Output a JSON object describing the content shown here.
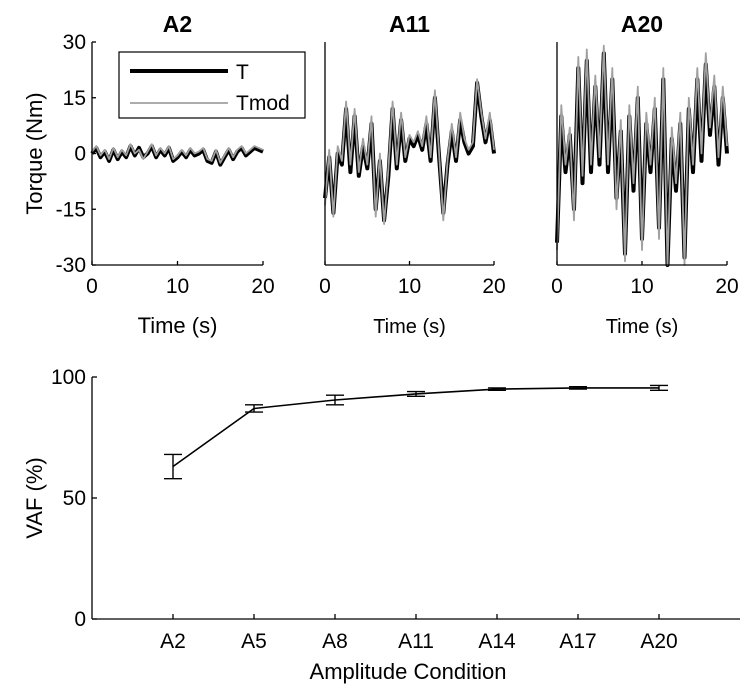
{
  "chart_data": [
    {
      "type": "line",
      "title": "A2",
      "xlabel": "Time (s)",
      "ylabel": "Torque (Nm)",
      "xlim": [
        0,
        20
      ],
      "ylim": [
        -30,
        30
      ],
      "xticks": [
        "0",
        "10",
        "20"
      ],
      "yticks": [
        "-30",
        "-15",
        "0",
        "15",
        "30"
      ],
      "legend": {
        "position": "top-left",
        "entries": [
          "T",
          "Tmod"
        ]
      },
      "series": [
        {
          "name": "T",
          "color": "#000000",
          "x": [
            0,
            0.5,
            1,
            1.5,
            2,
            2.5,
            3,
            3.5,
            4,
            4.5,
            5,
            5.5,
            6,
            6.5,
            7,
            7.5,
            8,
            8.5,
            9,
            9.5,
            10,
            10.5,
            11,
            11.5,
            12,
            12.5,
            13,
            13.5,
            14,
            14.5,
            15,
            15.5,
            16,
            16.5,
            17,
            17.5,
            18,
            18.5,
            19,
            19.5,
            20
          ],
          "y": [
            0,
            1.5,
            -1,
            0.5,
            -2,
            1,
            -1.5,
            0.5,
            -1,
            2,
            -0.5,
            1.5,
            -1,
            0,
            2,
            -1,
            1,
            -0.5,
            1.5,
            -2,
            -1,
            0.5,
            -1,
            1,
            -0.5,
            0,
            1,
            -2,
            -2.5,
            0.5,
            -3,
            -1,
            1,
            -1.5,
            0.5,
            1.5,
            -0.5,
            0.5,
            1.5,
            1,
            0.5
          ]
        },
        {
          "name": "Tmod",
          "color": "#a0a0a0",
          "x": [
            0,
            0.5,
            1,
            1.5,
            2,
            2.5,
            3,
            3.5,
            4,
            4.5,
            5,
            5.5,
            6,
            6.5,
            7,
            7.5,
            8,
            8.5,
            9,
            9.5,
            10,
            10.5,
            11,
            11.5,
            12,
            12.5,
            13,
            13.5,
            14,
            14.5,
            15,
            15.5,
            16,
            16.5,
            17,
            17.5,
            18,
            18.5,
            19,
            19.5,
            20
          ],
          "y": [
            0.5,
            2,
            -0.5,
            1,
            -1.5,
            1.5,
            -1,
            1,
            -0.5,
            2.5,
            0,
            1,
            -1.5,
            0.5,
            2.5,
            -0.5,
            1.5,
            0,
            2,
            -1.5,
            -0.5,
            1,
            -0.5,
            1.5,
            0,
            0.5,
            1.5,
            -1.5,
            -2,
            1,
            -2.5,
            -0.5,
            1.5,
            -1,
            1,
            2,
            0,
            1,
            2,
            1.5,
            1
          ]
        }
      ]
    },
    {
      "type": "line",
      "title": "A11",
      "xlabel": "Time (s)",
      "ylabel": "",
      "xlim": [
        0,
        20
      ],
      "ylim": [
        -30,
        30
      ],
      "xticks": [
        "0",
        "10",
        "20"
      ],
      "yticks": [],
      "series": [
        {
          "name": "T",
          "color": "#000000",
          "x": [
            0,
            0.5,
            1,
            1.5,
            2,
            2.5,
            3,
            3.5,
            4,
            4.5,
            5,
            5.5,
            6,
            6.5,
            7,
            7.5,
            8,
            8.5,
            9,
            9.5,
            10,
            10.5,
            11,
            11.5,
            12,
            12.5,
            13,
            13.5,
            14,
            14.5,
            15,
            15.5,
            16,
            16.5,
            17,
            17.5,
            18,
            18.5,
            19,
            19.5,
            20
          ],
          "y": [
            -12,
            -1,
            -16,
            0,
            -3,
            12,
            -5,
            10,
            -6,
            2,
            -4,
            8,
            -15,
            -2,
            -18,
            -6,
            12,
            -4,
            9,
            -2,
            4,
            2,
            5,
            1,
            8,
            -2,
            15,
            -1,
            -16,
            -3,
            6,
            -2,
            9,
            3,
            0,
            2,
            19,
            10,
            3,
            9,
            0
          ]
        },
        {
          "name": "Tmod",
          "color": "#a0a0a0",
          "x": [
            0,
            0.5,
            1,
            1.5,
            2,
            2.5,
            3,
            3.5,
            4,
            4.5,
            5,
            5.5,
            6,
            6.5,
            7,
            7.5,
            8,
            8.5,
            9,
            9.5,
            10,
            10.5,
            11,
            11.5,
            12,
            12.5,
            13,
            13.5,
            14,
            14.5,
            15,
            15.5,
            16,
            16.5,
            17,
            17.5,
            18,
            18.5,
            19,
            19.5,
            20
          ],
          "y": [
            -14,
            1,
            -17,
            2,
            -2,
            14,
            -3,
            12,
            -5,
            4,
            -3,
            10,
            -17,
            0,
            -19,
            -4,
            14,
            -3,
            11,
            -1,
            5,
            3,
            6,
            2,
            10,
            -1,
            17,
            0,
            -18,
            -2,
            8,
            -1,
            11,
            4,
            1,
            3,
            20,
            11,
            4,
            11,
            1
          ]
        }
      ]
    },
    {
      "type": "line",
      "title": "A20",
      "xlabel": "Time (s)",
      "ylabel": "",
      "xlim": [
        0,
        20
      ],
      "ylim": [
        -30,
        30
      ],
      "xticks": [
        "0",
        "10",
        "20"
      ],
      "yticks": [],
      "series": [
        {
          "name": "T",
          "color": "#000000",
          "x": [
            0,
            0.5,
            1,
            1.5,
            2,
            2.5,
            3,
            3.5,
            4,
            4.5,
            5,
            5.5,
            6,
            6.5,
            7,
            7.5,
            8,
            8.5,
            9,
            9.5,
            10,
            10.5,
            11,
            11.5,
            12,
            12.5,
            13,
            13.5,
            14,
            14.5,
            15,
            15.5,
            16,
            16.5,
            17,
            17.5,
            18,
            18.5,
            19,
            19.5,
            20
          ],
          "y": [
            -24,
            10,
            -5,
            5,
            -15,
            23,
            -8,
            25,
            -5,
            18,
            -3,
            27,
            -5,
            20,
            -12,
            6,
            -27,
            10,
            -10,
            15,
            -23,
            8,
            -5,
            12,
            -20,
            20,
            -30,
            4,
            -10,
            8,
            -28,
            12,
            -5,
            20,
            -2,
            24,
            5,
            18,
            -3,
            15,
            0
          ]
        },
        {
          "name": "Tmod",
          "color": "#a0a0a0",
          "x": [
            0,
            0.5,
            1,
            1.5,
            2,
            2.5,
            3,
            3.5,
            4,
            4.5,
            5,
            5.5,
            6,
            6.5,
            7,
            7.5,
            8,
            8.5,
            9,
            9.5,
            10,
            10.5,
            11,
            11.5,
            12,
            12.5,
            13,
            13.5,
            14,
            14.5,
            15,
            15.5,
            16,
            16.5,
            17,
            17.5,
            18,
            18.5,
            19,
            19.5,
            20
          ],
          "y": [
            -26,
            13,
            -3,
            7,
            -18,
            26,
            -6,
            28,
            -3,
            21,
            -1,
            29,
            -3,
            23,
            -15,
            9,
            -29,
            13,
            -8,
            18,
            -26,
            11,
            -3,
            15,
            -23,
            23,
            -30,
            7,
            -8,
            11,
            -30,
            15,
            -3,
            23,
            0,
            27,
            7,
            21,
            -1,
            18,
            2
          ]
        }
      ]
    },
    {
      "type": "line",
      "title": "",
      "xlabel": "Amplitude Condition",
      "ylabel": "VAF (%)",
      "ylim": [
        0,
        100
      ],
      "yticks": [
        "0",
        "50",
        "100"
      ],
      "categories": [
        "A2",
        "A5",
        "A8",
        "A11",
        "A14",
        "A17",
        "A20"
      ],
      "series": [
        {
          "color": "#000000",
          "values": [
            63,
            87,
            90.5,
            93,
            95,
            95.5,
            95.5
          ],
          "error": [
            5,
            1.5,
            2,
            1,
            0.5,
            0.5,
            1
          ]
        }
      ]
    }
  ]
}
